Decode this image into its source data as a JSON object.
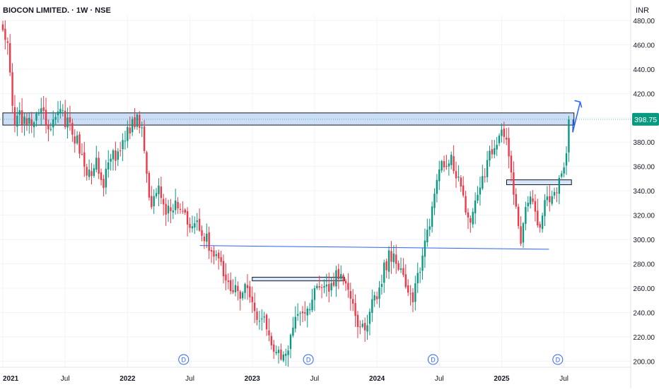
{
  "header": {
    "title": "BIOCON LIMITED. · 1W · NSE",
    "currency": "INR"
  },
  "price_tag": {
    "value": "398.75",
    "color": "#089981"
  },
  "dividend_marker": {
    "label": "D",
    "dates": [
      2022.45,
      2023.45,
      2024.45,
      2025.45
    ]
  },
  "colors": {
    "up": "#089981",
    "down": "#f23645",
    "zone_fill": "#bbd3f3",
    "zone_stroke": "#131722",
    "trendline": "#2962ff",
    "grid": "#f0f3fa",
    "axis_text": "#131722"
  },
  "chart_data": {
    "type": "candlestick",
    "interval": "1W",
    "x_ticks": [
      {
        "t": 2021.0,
        "label": "2021"
      },
      {
        "t": 2021.5,
        "label": "Jul"
      },
      {
        "t": 2022.0,
        "label": "2022"
      },
      {
        "t": 2022.5,
        "label": "Jul"
      },
      {
        "t": 2023.0,
        "label": "2023"
      },
      {
        "t": 2023.5,
        "label": "Jul"
      },
      {
        "t": 2024.0,
        "label": "2024"
      },
      {
        "t": 2024.5,
        "label": "Jul"
      },
      {
        "t": 2025.0,
        "label": "2025"
      },
      {
        "t": 2025.5,
        "label": "Jul"
      }
    ],
    "y_ticks": [
      200,
      220,
      240,
      260,
      280,
      300,
      320,
      340,
      360,
      380,
      400,
      420,
      440,
      460,
      480
    ],
    "ylim": [
      195,
      484
    ],
    "xlim": [
      2021.0,
      2025.95
    ],
    "last_price": 398.75,
    "anchors": [
      [
        2021.0,
        472
      ],
      [
        2021.03,
        462
      ],
      [
        2021.06,
        440
      ],
      [
        2021.09,
        395
      ],
      [
        2021.13,
        400
      ],
      [
        2021.22,
        395
      ],
      [
        2021.3,
        412
      ],
      [
        2021.38,
        393
      ],
      [
        2021.45,
        402
      ],
      [
        2021.52,
        398
      ],
      [
        2021.6,
        378
      ],
      [
        2021.68,
        350
      ],
      [
        2021.74,
        365
      ],
      [
        2021.8,
        340
      ],
      [
        2021.86,
        372
      ],
      [
        2021.93,
        365
      ],
      [
        2021.98,
        385
      ],
      [
        2022.08,
        400
      ],
      [
        2022.12,
        390
      ],
      [
        2022.17,
        330
      ],
      [
        2022.25,
        342
      ],
      [
        2022.32,
        322
      ],
      [
        2022.4,
        332
      ],
      [
        2022.48,
        318
      ],
      [
        2022.56,
        312
      ],
      [
        2022.64,
        298
      ],
      [
        2022.72,
        285
      ],
      [
        2022.78,
        268
      ],
      [
        2022.84,
        258
      ],
      [
        2022.9,
        255
      ],
      [
        2022.96,
        262
      ],
      [
        2023.02,
        240
      ],
      [
        2023.1,
        232
      ],
      [
        2023.16,
        216
      ],
      [
        2023.22,
        207
      ],
      [
        2023.26,
        203
      ],
      [
        2023.32,
        228
      ],
      [
        2023.38,
        242
      ],
      [
        2023.45,
        245
      ],
      [
        2023.52,
        258
      ],
      [
        2023.6,
        262
      ],
      [
        2023.66,
        268
      ],
      [
        2023.72,
        275
      ],
      [
        2023.76,
        258
      ],
      [
        2023.82,
        238
      ],
      [
        2023.86,
        225
      ],
      [
        2023.92,
        234
      ],
      [
        2024.0,
        256
      ],
      [
        2024.06,
        278
      ],
      [
        2024.12,
        288
      ],
      [
        2024.2,
        268
      ],
      [
        2024.28,
        250
      ],
      [
        2024.34,
        272
      ],
      [
        2024.4,
        302
      ],
      [
        2024.46,
        338
      ],
      [
        2024.52,
        358
      ],
      [
        2024.58,
        368
      ],
      [
        2024.64,
        352
      ],
      [
        2024.7,
        330
      ],
      [
        2024.76,
        315
      ],
      [
        2024.82,
        345
      ],
      [
        2024.88,
        362
      ],
      [
        2024.94,
        378
      ],
      [
        2025.0,
        392
      ],
      [
        2025.06,
        372
      ],
      [
        2025.12,
        320
      ],
      [
        2025.16,
        298
      ],
      [
        2025.2,
        332
      ],
      [
        2025.26,
        325
      ],
      [
        2025.3,
        312
      ],
      [
        2025.36,
        332
      ],
      [
        2025.42,
        338
      ],
      [
        2025.48,
        355
      ],
      [
        2025.52,
        375
      ],
      [
        2025.55,
        398.75
      ]
    ],
    "annotations": {
      "resistance_zone": {
        "y_top": 404,
        "y_bottom": 394,
        "x_start": 2021.0,
        "x_end": 2025.58
      },
      "trendline": {
        "x1": 2022.58,
        "y1": 295,
        "x2": 2025.38,
        "y2": 292
      },
      "box_2023": {
        "x_start": 2023.0,
        "x_end": 2023.74,
        "y_top": 269,
        "y_bottom": 266
      },
      "box_2025": {
        "x_start": 2025.04,
        "x_end": 2025.56,
        "y_top": 349,
        "y_bottom": 345
      },
      "projection_arrow": [
        [
          2025.57,
          388
        ],
        [
          2025.63,
          413
        ]
      ]
    }
  }
}
